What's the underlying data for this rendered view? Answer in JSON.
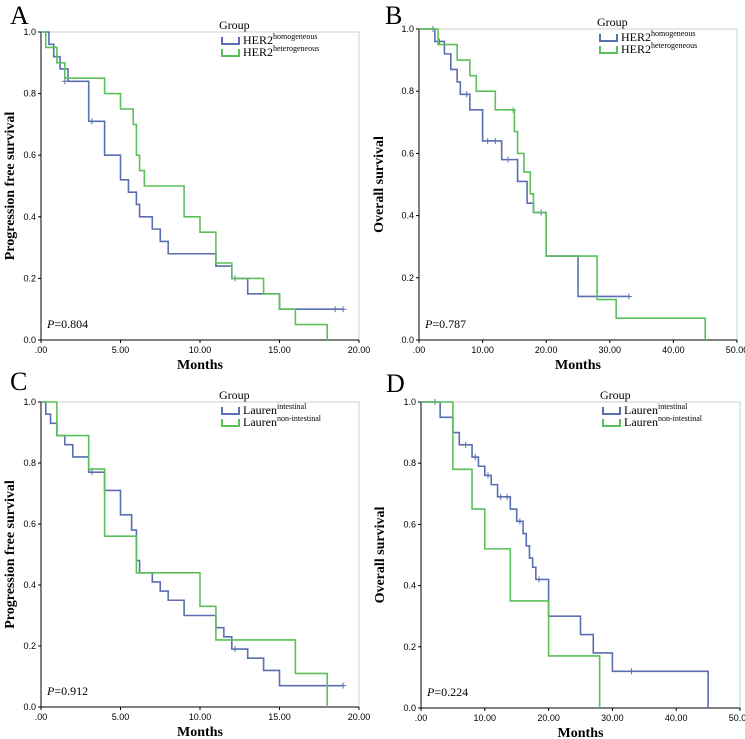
{
  "colors": {
    "series1": "#5a6fb0",
    "series2": "#5cc15a"
  },
  "chart_data": [
    {
      "type": "line",
      "panel_label": "A",
      "ylabel": "Progression free survival",
      "xlabel": "Months",
      "xlim": [
        0,
        20
      ],
      "ylim": [
        0,
        1
      ],
      "x_ticks": [
        0,
        5,
        10,
        15,
        20
      ],
      "x_tick_labels": [
        ".00",
        "5.00",
        "10.00",
        "15.00",
        "20.00"
      ],
      "y_ticks": [
        0,
        0.2,
        0.4,
        0.6,
        0.8,
        1.0
      ],
      "y_tick_labels": [
        "0.0",
        "0.2",
        "0.4",
        "0.6",
        "0.8",
        "1.0"
      ],
      "p_label": "P",
      "p_value": "=0.804",
      "legend": {
        "title": "Group",
        "placement": "top-right"
      },
      "series": [
        {
          "name_main": "HER2",
          "name_sup": "homogeneous",
          "steps": [
            [
              0,
              1.0
            ],
            [
              0.5,
              0.96
            ],
            [
              0.8,
              0.92
            ],
            [
              1.2,
              0.88
            ],
            [
              1.7,
              0.84
            ],
            [
              3,
              0.71
            ],
            [
              4,
              0.6
            ],
            [
              5,
              0.52
            ],
            [
              5.5,
              0.48
            ],
            [
              6,
              0.44
            ],
            [
              6.2,
              0.4
            ],
            [
              7,
              0.36
            ],
            [
              7.5,
              0.32
            ],
            [
              8,
              0.28
            ],
            [
              11,
              0.24
            ],
            [
              12,
              0.2
            ],
            [
              13,
              0.15
            ],
            [
              15,
              0.1
            ],
            [
              19,
              0.1
            ]
          ],
          "censored": [
            [
              1.5,
              0.84
            ],
            [
              3.2,
              0.71
            ],
            [
              12.2,
              0.2
            ],
            [
              18.5,
              0.1
            ],
            [
              19,
              0.1
            ]
          ]
        },
        {
          "name_main": "HER2",
          "name_sup": "heterogeneous",
          "steps": [
            [
              0,
              1.0
            ],
            [
              0.3,
              0.95
            ],
            [
              1,
              0.9
            ],
            [
              1.5,
              0.85
            ],
            [
              4,
              0.8
            ],
            [
              5,
              0.75
            ],
            [
              5.8,
              0.7
            ],
            [
              6,
              0.6
            ],
            [
              6.2,
              0.55
            ],
            [
              6.5,
              0.5
            ],
            [
              9,
              0.4
            ],
            [
              10,
              0.35
            ],
            [
              11,
              0.25
            ],
            [
              12,
              0.2
            ],
            [
              14,
              0.15
            ],
            [
              15,
              0.1
            ],
            [
              16,
              0.05
            ],
            [
              18,
              0.0
            ]
          ],
          "censored": []
        }
      ]
    },
    {
      "type": "line",
      "panel_label": "B",
      "ylabel": "Overall survival",
      "xlabel": "Months",
      "xlim": [
        0,
        50
      ],
      "ylim": [
        0,
        1
      ],
      "x_ticks": [
        0,
        10,
        20,
        30,
        40,
        50
      ],
      "x_tick_labels": [
        ".00",
        "10.00",
        "20.00",
        "30.00",
        "40.00",
        "50.00"
      ],
      "y_ticks": [
        0,
        0.2,
        0.4,
        0.6,
        0.8,
        1.0
      ],
      "y_tick_labels": [
        "0.0",
        "0.2",
        "0.4",
        "0.6",
        "0.8",
        "1.0"
      ],
      "p_label": "P",
      "p_value": "=0.787",
      "legend": {
        "title": "Group",
        "placement": "top-right"
      },
      "series": [
        {
          "name_main": "HER2",
          "name_sup": "homogeneous",
          "steps": [
            [
              0,
              1.0
            ],
            [
              2.5,
              0.96
            ],
            [
              4,
              0.92
            ],
            [
              5,
              0.87
            ],
            [
              6,
              0.83
            ],
            [
              6.5,
              0.79
            ],
            [
              8,
              0.74
            ],
            [
              10,
              0.64
            ],
            [
              13,
              0.58
            ],
            [
              15.5,
              0.51
            ],
            [
              17,
              0.44
            ],
            [
              18,
              0.41
            ],
            [
              20,
              0.27
            ],
            [
              25,
              0.14
            ],
            [
              33,
              0.14
            ]
          ],
          "censored": [
            [
              2.2,
              1.0
            ],
            [
              3.2,
              0.96
            ],
            [
              7.5,
              0.79
            ],
            [
              10.8,
              0.64
            ],
            [
              12,
              0.64
            ],
            [
              14,
              0.58
            ],
            [
              19.2,
              0.41
            ],
            [
              33,
              0.14
            ]
          ]
        },
        {
          "name_main": "HER2",
          "name_sup": "heterogeneous",
          "steps": [
            [
              0,
              1.0
            ],
            [
              3,
              0.95
            ],
            [
              6,
              0.9
            ],
            [
              8,
              0.85
            ],
            [
              9,
              0.8
            ],
            [
              12,
              0.74
            ],
            [
              15,
              0.67
            ],
            [
              15.5,
              0.6
            ],
            [
              16.5,
              0.54
            ],
            [
              17.5,
              0.47
            ],
            [
              18,
              0.41
            ],
            [
              20,
              0.27
            ],
            [
              28,
              0.13
            ],
            [
              31,
              0.07
            ],
            [
              45,
              0.0
            ]
          ],
          "censored": [
            [
              14.8,
              0.74
            ]
          ]
        }
      ]
    },
    {
      "type": "line",
      "panel_label": "C",
      "ylabel": "Progression free survival",
      "xlabel": "Months",
      "xlim": [
        0,
        20
      ],
      "ylim": [
        0,
        1
      ],
      "x_ticks": [
        0,
        5,
        10,
        15,
        20
      ],
      "x_tick_labels": [
        ".00",
        "5.00",
        "10.00",
        "15.00",
        "20.00"
      ],
      "y_ticks": [
        0,
        0.2,
        0.4,
        0.6,
        0.8,
        1.0
      ],
      "y_tick_labels": [
        "0.0",
        "0.2",
        "0.4",
        "0.6",
        "0.8",
        "1.0"
      ],
      "p_label": "P",
      "p_value": "=0.912",
      "legend": {
        "title": "Group",
        "placement": "top-right"
      },
      "series": [
        {
          "name_main": "Lauren",
          "name_sup": "intestinal",
          "steps": [
            [
              0,
              1.0
            ],
            [
              0.3,
              0.96
            ],
            [
              0.6,
              0.93
            ],
            [
              1,
              0.89
            ],
            [
              1.5,
              0.86
            ],
            [
              2,
              0.82
            ],
            [
              3,
              0.77
            ],
            [
              4,
              0.71
            ],
            [
              5,
              0.63
            ],
            [
              5.7,
              0.58
            ],
            [
              6,
              0.48
            ],
            [
              6.2,
              0.44
            ],
            [
              7,
              0.41
            ],
            [
              7.5,
              0.38
            ],
            [
              8,
              0.35
            ],
            [
              9,
              0.3
            ],
            [
              11,
              0.26
            ],
            [
              11.5,
              0.23
            ],
            [
              12,
              0.19
            ],
            [
              13,
              0.16
            ],
            [
              14,
              0.12
            ],
            [
              15,
              0.07
            ],
            [
              19,
              0.07
            ]
          ],
          "censored": [
            [
              3.2,
              0.77
            ],
            [
              12.2,
              0.19
            ],
            [
              19,
              0.07
            ]
          ]
        },
        {
          "name_main": "Lauren",
          "name_sup": "non-intestinal",
          "steps": [
            [
              0,
              1.0
            ],
            [
              1,
              0.89
            ],
            [
              3,
              0.78
            ],
            [
              4,
              0.56
            ],
            [
              6,
              0.44
            ],
            [
              10,
              0.33
            ],
            [
              11,
              0.22
            ],
            [
              16,
              0.11
            ],
            [
              18,
              0.0
            ]
          ],
          "censored": []
        }
      ]
    },
    {
      "type": "line",
      "panel_label": "D",
      "ylabel": "Overall survival",
      "xlabel": "Months",
      "xlim": [
        0,
        50
      ],
      "ylim": [
        0,
        1
      ],
      "x_ticks": [
        0,
        10,
        20,
        30,
        40,
        50
      ],
      "x_tick_labels": [
        ".00",
        "10.00",
        "20.00",
        "30.00",
        "40.00",
        "50.00"
      ],
      "y_ticks": [
        0,
        0.2,
        0.4,
        0.6,
        0.8,
        1.0
      ],
      "y_tick_labels": [
        "0.0",
        "0.2",
        "0.4",
        "0.6",
        "0.8",
        "1.0"
      ],
      "p_label": "P",
      "p_value": "=0.224",
      "legend": {
        "title": "Group",
        "placement": "top-right"
      },
      "series": [
        {
          "name_main": "Lauren",
          "name_sup": "intestinal",
          "steps": [
            [
              0,
              1.0
            ],
            [
              3,
              0.95
            ],
            [
              5,
              0.9
            ],
            [
              6,
              0.86
            ],
            [
              8,
              0.82
            ],
            [
              9,
              0.79
            ],
            [
              10,
              0.76
            ],
            [
              11,
              0.73
            ],
            [
              12,
              0.69
            ],
            [
              14,
              0.65
            ],
            [
              15,
              0.61
            ],
            [
              16,
              0.57
            ],
            [
              16.5,
              0.53
            ],
            [
              17,
              0.49
            ],
            [
              17.5,
              0.46
            ],
            [
              18,
              0.42
            ],
            [
              20,
              0.3
            ],
            [
              25,
              0.24
            ],
            [
              27,
              0.18
            ],
            [
              30,
              0.12
            ],
            [
              45,
              0.0
            ]
          ],
          "censored": [
            [
              2.2,
              1.0
            ],
            [
              7,
              0.86
            ],
            [
              8.5,
              0.82
            ],
            [
              10.5,
              0.76
            ],
            [
              12.5,
              0.69
            ],
            [
              13.5,
              0.69
            ],
            [
              15.5,
              0.61
            ],
            [
              18.5,
              0.42
            ],
            [
              33,
              0.12
            ]
          ]
        },
        {
          "name_main": "Lauren",
          "name_sup": "non-intestinal",
          "steps": [
            [
              0,
              1.0
            ],
            [
              5,
              0.78
            ],
            [
              8,
              0.65
            ],
            [
              10,
              0.52
            ],
            [
              14,
              0.35
            ],
            [
              20,
              0.17
            ],
            [
              28,
              0.0
            ]
          ],
          "censored": []
        }
      ]
    }
  ]
}
